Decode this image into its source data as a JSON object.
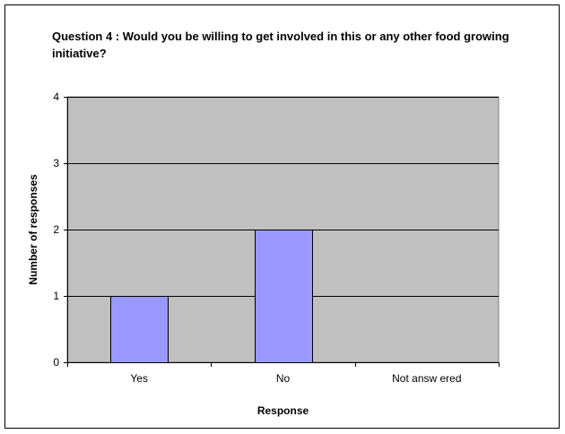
{
  "chart_data": {
    "type": "bar",
    "title": "Question 4 : Would you be willing to get involved in this or any other food growing initiative?",
    "xlabel": "Response",
    "ylabel": "Number of responses",
    "categories": [
      "Yes",
      "No",
      "Not answ ered"
    ],
    "values": [
      1,
      2,
      0
    ],
    "ylim": [
      0,
      4
    ],
    "yticks": [
      "0",
      "1",
      "2",
      "3",
      "4"
    ],
    "grid": true,
    "legend": "none",
    "colors": {
      "plot_background": "#c0c0c0",
      "bar_fill": "#9999ff",
      "bar_stroke": "#000000",
      "gridline": "#000000"
    }
  }
}
